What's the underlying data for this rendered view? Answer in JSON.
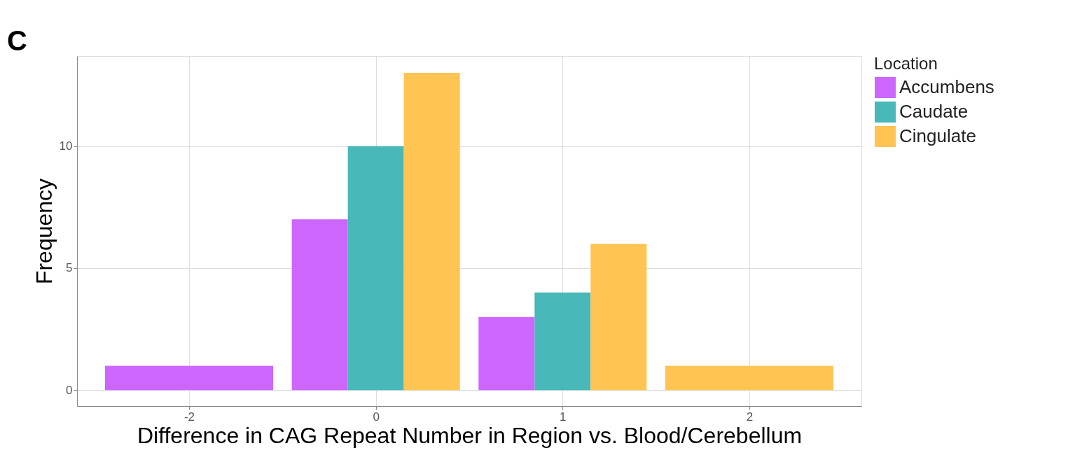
{
  "chart_data": {
    "type": "bar",
    "xlabel": "Difference in CAG Repeat Number in Region vs. Blood/Cerebellum",
    "ylabel": "Frequency",
    "legend_title": "Location",
    "categories": [
      "-2",
      "0",
      "1",
      "2"
    ],
    "series": [
      {
        "name": "Accumbens",
        "color": "#cc66ff",
        "values": [
          1,
          7,
          3,
          null
        ]
      },
      {
        "name": "Caudate",
        "color": "#48b8b8",
        "values": [
          null,
          10,
          4,
          null
        ]
      },
      {
        "name": "Cingulate",
        "color": "#ffc452",
        "values": [
          null,
          13,
          6,
          1
        ]
      }
    ],
    "ylim": [
      -0.65,
      13.69
    ],
    "yticks": [
      0,
      5,
      10
    ],
    "grid": true,
    "legend": "right",
    "annotations": [
      "C"
    ]
  }
}
